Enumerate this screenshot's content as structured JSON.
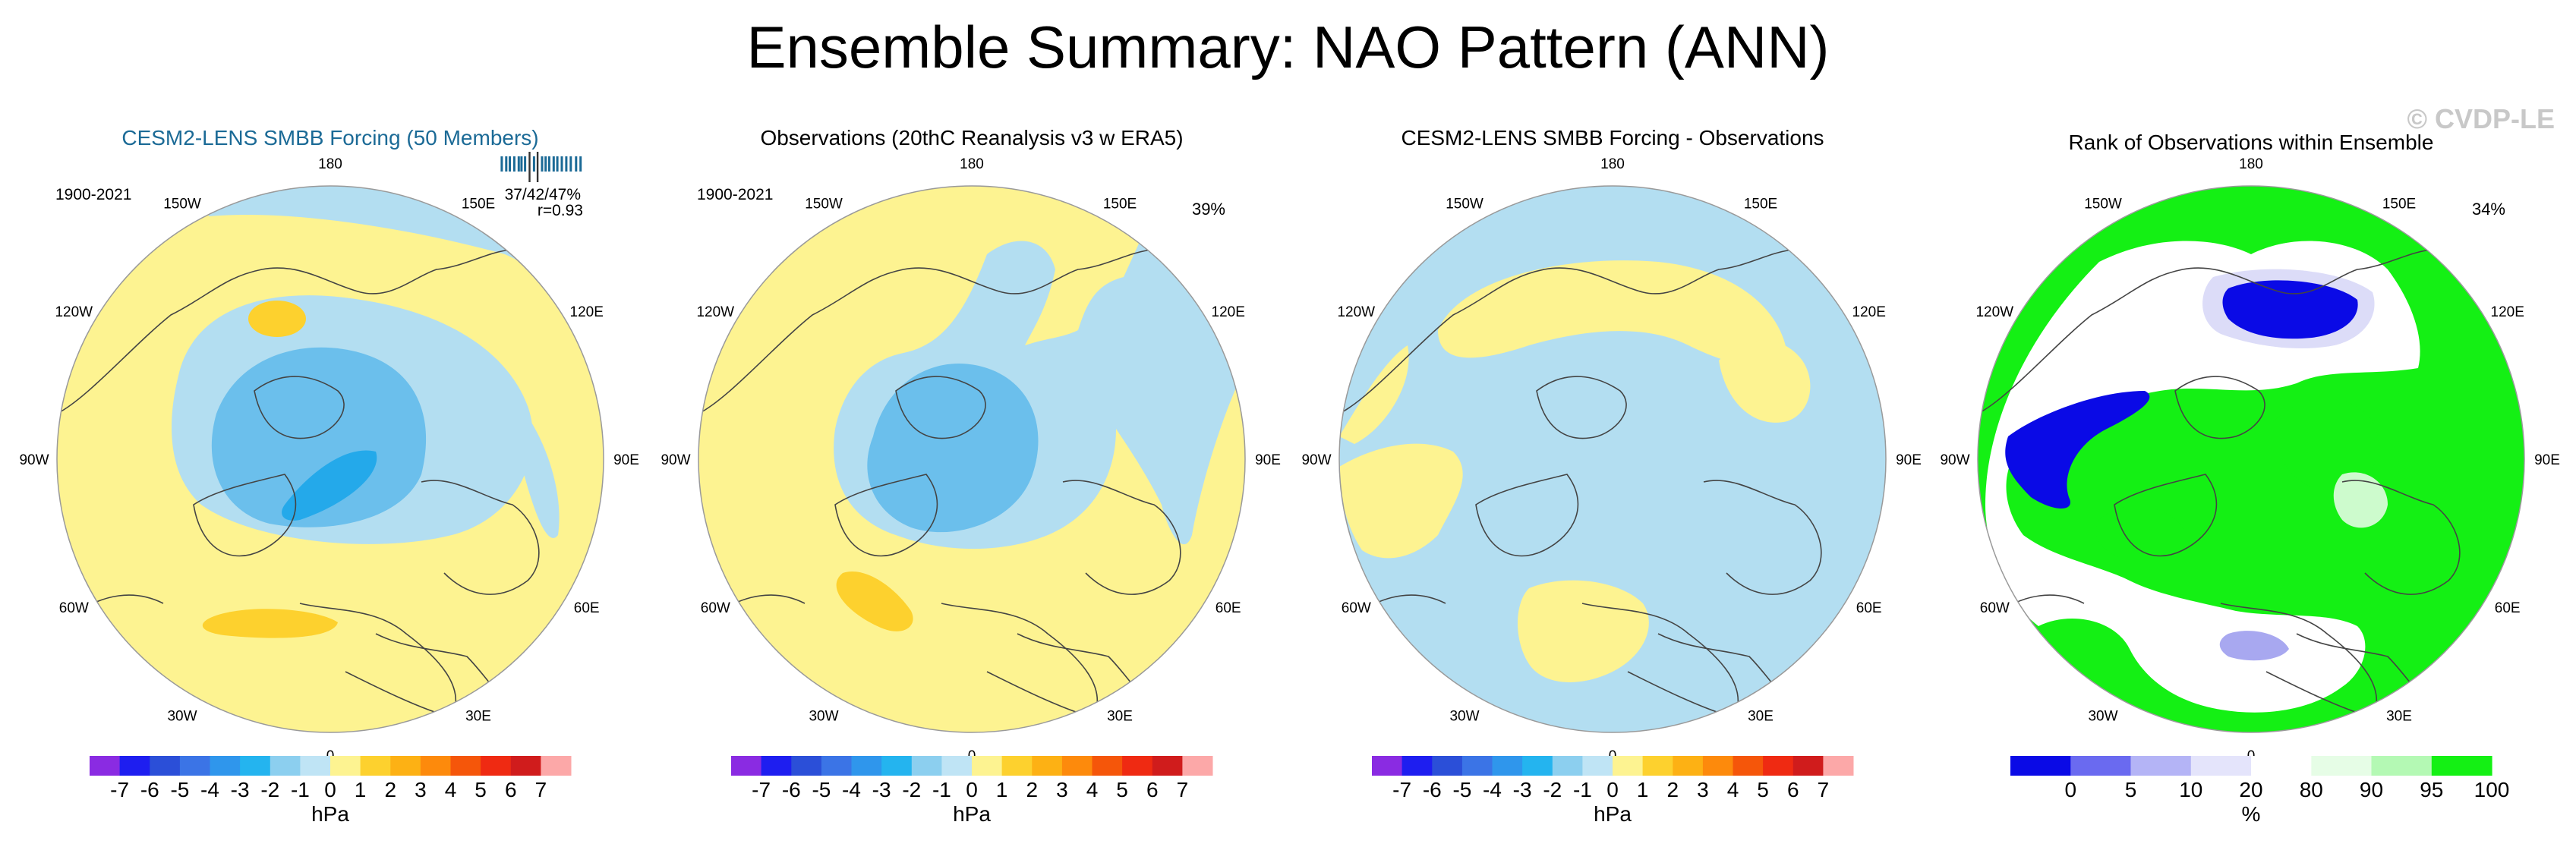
{
  "title": "Ensemble Summary: NAO Pattern (ANN)",
  "watermark": "© CVDP-LE",
  "colors": {
    "pos1": "#fdf391",
    "pos2": "#fdd12e",
    "neg1": "#b3def1",
    "neg2": "#6bbfec",
    "neg3": "#24a9ea",
    "land": "#444444",
    "ring": "#9a9a9a",
    "title_blue": "#1b6a96",
    "rank_blue": "#0a0ae6",
    "rank_mid": "#a8a8f0",
    "rank_light": "#dcdcf8",
    "rank_green": "#14f014",
    "rank_green_light": "#cdfbcd"
  },
  "longitude_labels": [
    "180",
    "150E",
    "120E",
    "90E",
    "60E",
    "30E",
    "0",
    "30W",
    "60W",
    "90W",
    "120W",
    "150W"
  ],
  "chart_data": [
    {
      "type": "map",
      "title": "CESM2-LENS SMBB Forcing (50 Members)",
      "period": "1900-2021",
      "stats": "37/42/47%",
      "correlation": "r=0.93",
      "rank_ticks": [
        0.05,
        0.1,
        0.14,
        0.19,
        0.24,
        0.27,
        0.31,
        0.36,
        0.41,
        0.45,
        0.5,
        0.54,
        0.58,
        0.63,
        0.67,
        0.72,
        0.77,
        0.82,
        0.88,
        0.93
      ],
      "colorbar": {
        "colors": [
          "#8a2be2",
          "#1e1ef0",
          "#2b4fd8",
          "#3b74e6",
          "#2f96ec",
          "#24b4ef",
          "#8ccfef",
          "#bfe4f5",
          "#fdf391",
          "#fdd12e",
          "#fdb114",
          "#fd8a0c",
          "#f5560a",
          "#ef2a12",
          "#d01c1c",
          "#fca8a8"
        ],
        "labels": [
          "-7",
          "-6",
          "-5",
          "-4",
          "-3",
          "-2",
          "-1",
          "0",
          "1",
          "2",
          "3",
          "4",
          "5",
          "6",
          "7"
        ],
        "unit": "hPa"
      }
    },
    {
      "type": "map",
      "title": "Observations (20thC Reanalysis v3 w ERA5)",
      "period": "1900-2021",
      "pct": "39%",
      "colorbar": {
        "colors": [
          "#8a2be2",
          "#1e1ef0",
          "#2b4fd8",
          "#3b74e6",
          "#2f96ec",
          "#24b4ef",
          "#8ccfef",
          "#bfe4f5",
          "#fdf391",
          "#fdd12e",
          "#fdb114",
          "#fd8a0c",
          "#f5560a",
          "#ef2a12",
          "#d01c1c",
          "#fca8a8"
        ],
        "labels": [
          "-7",
          "-6",
          "-5",
          "-4",
          "-3",
          "-2",
          "-1",
          "0",
          "1",
          "2",
          "3",
          "4",
          "5",
          "6",
          "7"
        ],
        "unit": "hPa"
      }
    },
    {
      "type": "map",
      "title": "CESM2-LENS SMBB Forcing - Observations",
      "colorbar": {
        "colors": [
          "#8a2be2",
          "#1e1ef0",
          "#2b4fd8",
          "#3b74e6",
          "#2f96ec",
          "#24b4ef",
          "#8ccfef",
          "#bfe4f5",
          "#fdf391",
          "#fdd12e",
          "#fdb114",
          "#fd8a0c",
          "#f5560a",
          "#ef2a12",
          "#d01c1c",
          "#fca8a8"
        ],
        "labels": [
          "-7",
          "-6",
          "-5",
          "-4",
          "-3",
          "-2",
          "-1",
          "0",
          "1",
          "2",
          "3",
          "4",
          "5",
          "6",
          "7"
        ],
        "unit": "hPa"
      }
    },
    {
      "type": "map",
      "title": "Rank of Observations within Ensemble",
      "pct": "34%",
      "colorbar": {
        "colors": [
          "#0a0ae6",
          "#6a6af0",
          "#b4b4f6",
          "#e4e4fb",
          "#ffffff",
          "#e6fde6",
          "#b4f9b4",
          "#14f014"
        ],
        "labels": [
          "0",
          "5",
          "10",
          "20",
          "80",
          "90",
          "95",
          "100"
        ],
        "unit": "%"
      }
    }
  ]
}
